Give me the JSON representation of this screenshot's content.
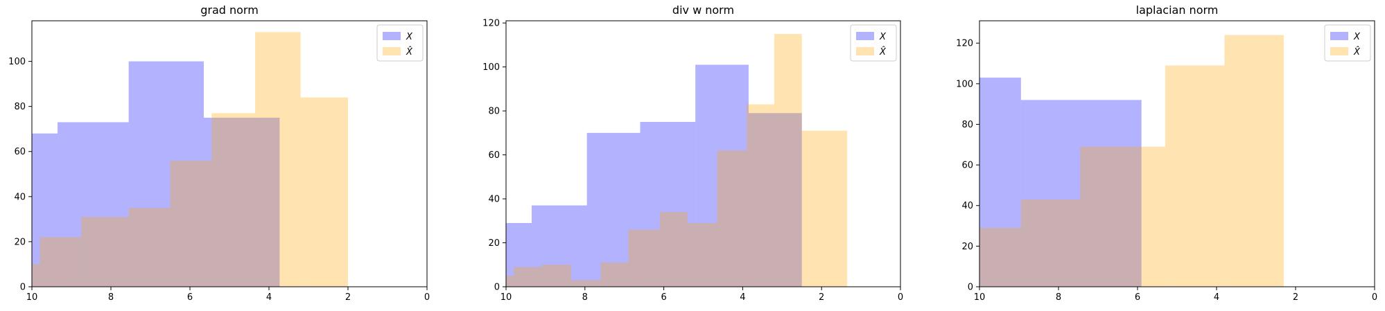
{
  "colors": {
    "x": "#0000ff",
    "xhat": "#ffa500",
    "axis": "#000000"
  },
  "chart_data": [
    {
      "type": "bar",
      "title": "grad norm",
      "xlim": [
        10,
        0
      ],
      "ylim": [
        0,
        118
      ],
      "xticks": [
        "10",
        "8",
        "6",
        "4",
        "2",
        "0"
      ],
      "yticks": [
        "0",
        "20",
        "40",
        "60",
        "80",
        "100"
      ],
      "legend": {
        "placement": "top-right",
        "entries": [
          "X",
          "X̂"
        ]
      },
      "series": [
        {
          "name": "X",
          "bins": [
            [
              10,
              9.35,
              68
            ],
            [
              9.35,
              7.55,
              73
            ],
            [
              7.55,
              5.65,
              100
            ],
            [
              5.65,
              3.73,
              75
            ]
          ]
        },
        {
          "name": "X̂",
          "bins": [
            [
              10,
              9.8,
              10
            ],
            [
              9.8,
              8.75,
              22
            ],
            [
              8.75,
              7.55,
              31
            ],
            [
              7.55,
              6.5,
              35
            ],
            [
              6.5,
              5.45,
              56
            ],
            [
              5.45,
              4.35,
              77
            ],
            [
              4.35,
              3.2,
              113
            ],
            [
              3.2,
              2.0,
              84
            ]
          ]
        }
      ]
    },
    {
      "type": "bar",
      "title": "div w norm",
      "xlim": [
        10,
        0
      ],
      "ylim": [
        0,
        121
      ],
      "xticks": [
        "10",
        "8",
        "6",
        "4",
        "2",
        "0"
      ],
      "yticks": [
        "0",
        "20",
        "40",
        "60",
        "80",
        "100",
        "120"
      ],
      "legend": {
        "placement": "top-right",
        "entries": [
          "X",
          "X̂"
        ]
      },
      "series": [
        {
          "name": "X",
          "bins": [
            [
              10,
              9.35,
              29
            ],
            [
              9.35,
              7.95,
              37
            ],
            [
              7.95,
              6.6,
              70
            ],
            [
              6.6,
              5.2,
              75
            ],
            [
              5.2,
              3.85,
              101
            ],
            [
              3.85,
              2.5,
              79
            ]
          ]
        },
        {
          "name": "X̂",
          "bins": [
            [
              10,
              9.8,
              5
            ],
            [
              9.8,
              9.1,
              9
            ],
            [
              9.1,
              8.35,
              10
            ],
            [
              8.35,
              7.6,
              3
            ],
            [
              7.6,
              6.9,
              11
            ],
            [
              6.9,
              6.1,
              26
            ],
            [
              6.1,
              5.4,
              34
            ],
            [
              5.4,
              4.65,
              29
            ],
            [
              4.65,
              3.9,
              62
            ],
            [
              3.9,
              3.2,
              83
            ],
            [
              3.2,
              2.5,
              115
            ],
            [
              2.5,
              1.35,
              71
            ]
          ]
        }
      ]
    },
    {
      "type": "bar",
      "title": "laplacian norm",
      "xlim": [
        10,
        0
      ],
      "ylim": [
        0,
        131
      ],
      "xticks": [
        "10",
        "8",
        "6",
        "4",
        "2",
        "0"
      ],
      "yticks": [
        "0",
        "20",
        "40",
        "60",
        "80",
        "100",
        "120"
      ],
      "legend": {
        "placement": "top-right",
        "entries": [
          "X",
          "X̂"
        ]
      },
      "series": [
        {
          "name": "X",
          "bins": [
            [
              10,
              8.95,
              103
            ],
            [
              8.95,
              5.9,
              92
            ]
          ]
        },
        {
          "name": "X̂",
          "bins": [
            [
              10,
              8.95,
              29
            ],
            [
              8.95,
              7.45,
              43
            ],
            [
              7.45,
              5.9,
              69
            ],
            [
              5.9,
              5.3,
              69
            ],
            [
              5.3,
              3.8,
              109
            ],
            [
              3.8,
              2.3,
              124
            ]
          ]
        }
      ]
    }
  ]
}
